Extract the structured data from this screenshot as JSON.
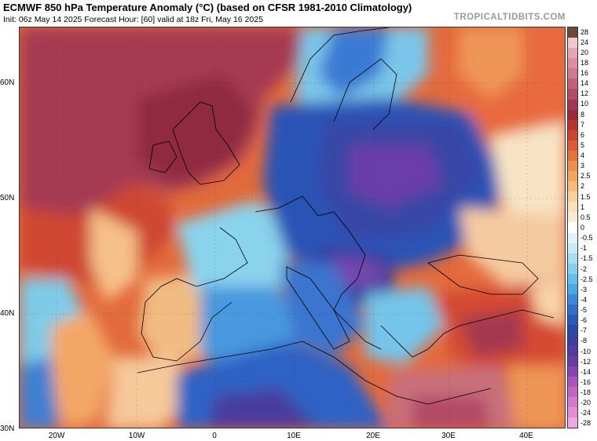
{
  "header": {
    "title": "ECMWF 850 hPa Temperature Anomaly (°C) (based on CFSR 1981-2010 Climatology)",
    "subtitle": "Init: 06z May 14 2025   Forecast Hour: [60]   valid at 18z Fri, May 16 2025",
    "brand": "TROPICALTIDBITS.COM"
  },
  "map": {
    "lat_labels": [
      "60N",
      "50N",
      "40N",
      "30N"
    ],
    "lon_labels": [
      "20W",
      "10W",
      "0",
      "10E",
      "20E",
      "30E",
      "40E"
    ]
  },
  "colorbar": {
    "labels": [
      "28",
      "24",
      "20",
      "18",
      "16",
      "14",
      "12",
      "10",
      "8",
      "7",
      "6",
      "5",
      "4",
      "3",
      "2.5",
      "2",
      "1.5",
      "1",
      "0.5",
      "0",
      "-0.5",
      "-1",
      "-1.5",
      "-2",
      "-2.5",
      "-3",
      "-4",
      "-5",
      "-6",
      "-7",
      "-8",
      "-10",
      "-12",
      "-14",
      "-16",
      "-18",
      "-20",
      "-24",
      "-28"
    ],
    "colors": [
      "#6b4a3a",
      "#f0c8c8",
      "#e6a6b4",
      "#dd8ea4",
      "#d07890",
      "#c45f7c",
      "#b24a68",
      "#a33654",
      "#962a3e",
      "#b7352e",
      "#cc4430",
      "#dc5a34",
      "#e6733c",
      "#ee8f4c",
      "#f3a560",
      "#f6bb7a",
      "#f8d09a",
      "#f8e0b8",
      "#f8ecd8",
      "#ffffff",
      "#e4f2f8",
      "#c8eaf4",
      "#a8def0",
      "#86d0ec",
      "#66bfe8",
      "#4aa8e2",
      "#3a8cda",
      "#3070cc",
      "#2b58bc",
      "#2a48a8",
      "#3a3e9c",
      "#523ca0",
      "#6a3ca8",
      "#8a44b2",
      "#a854bc",
      "#c264c4",
      "#d878cc",
      "#e68cd4",
      "#f0a8e0"
    ]
  }
}
